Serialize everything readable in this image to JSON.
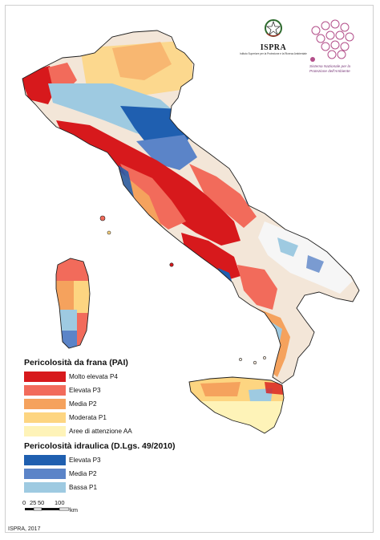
{
  "map": {
    "colors": {
      "background": "#ffffff",
      "land_base": "#f3e6d8",
      "outline": "#1f1f1f",
      "frana_p4": "#d7191c",
      "frana_p3": "#f26b5b",
      "frana_p2": "#f5a25d",
      "frana_p1": "#fdd581",
      "frana_aa": "#fef3b8",
      "idraulica_p3": "#1f5fb0",
      "idraulica_p2": "#5b84c8",
      "idraulica_p1": "#9ecae1"
    }
  },
  "logos": {
    "ispra_name": "ISPRA",
    "ispra_subtitle": "Istituto Superiore per la Protezione e la Ricerca Ambientale",
    "snpa_text": "Sistema Nazionale per la Protezione dell'Ambiente"
  },
  "legend": {
    "landslide_title": "Pericolosità da frana (PAI)",
    "landslide_items": [
      {
        "label": "Molto elevata P4",
        "color": "#d7191c"
      },
      {
        "label": "Elevata P3",
        "color": "#f26b5b"
      },
      {
        "label": "Media P2",
        "color": "#f5a25d"
      },
      {
        "label": "Moderata P1",
        "color": "#fdd581"
      },
      {
        "label": "Aree di attenzione AA",
        "color": "#fef3b8"
      }
    ],
    "hydraulic_title": "Pericolosità idraulica (D.Lgs. 49/2010)",
    "hydraulic_items": [
      {
        "label": "Elevata P3",
        "color": "#1f5fb0"
      },
      {
        "label": "Media P2",
        "color": "#5b84c8"
      },
      {
        "label": "Bassa P1",
        "color": "#9ecae1"
      }
    ]
  },
  "scale": {
    "ticks": [
      "0",
      "25",
      "50",
      "100"
    ],
    "unit": "km"
  },
  "credit": "ISPRA, 2017"
}
